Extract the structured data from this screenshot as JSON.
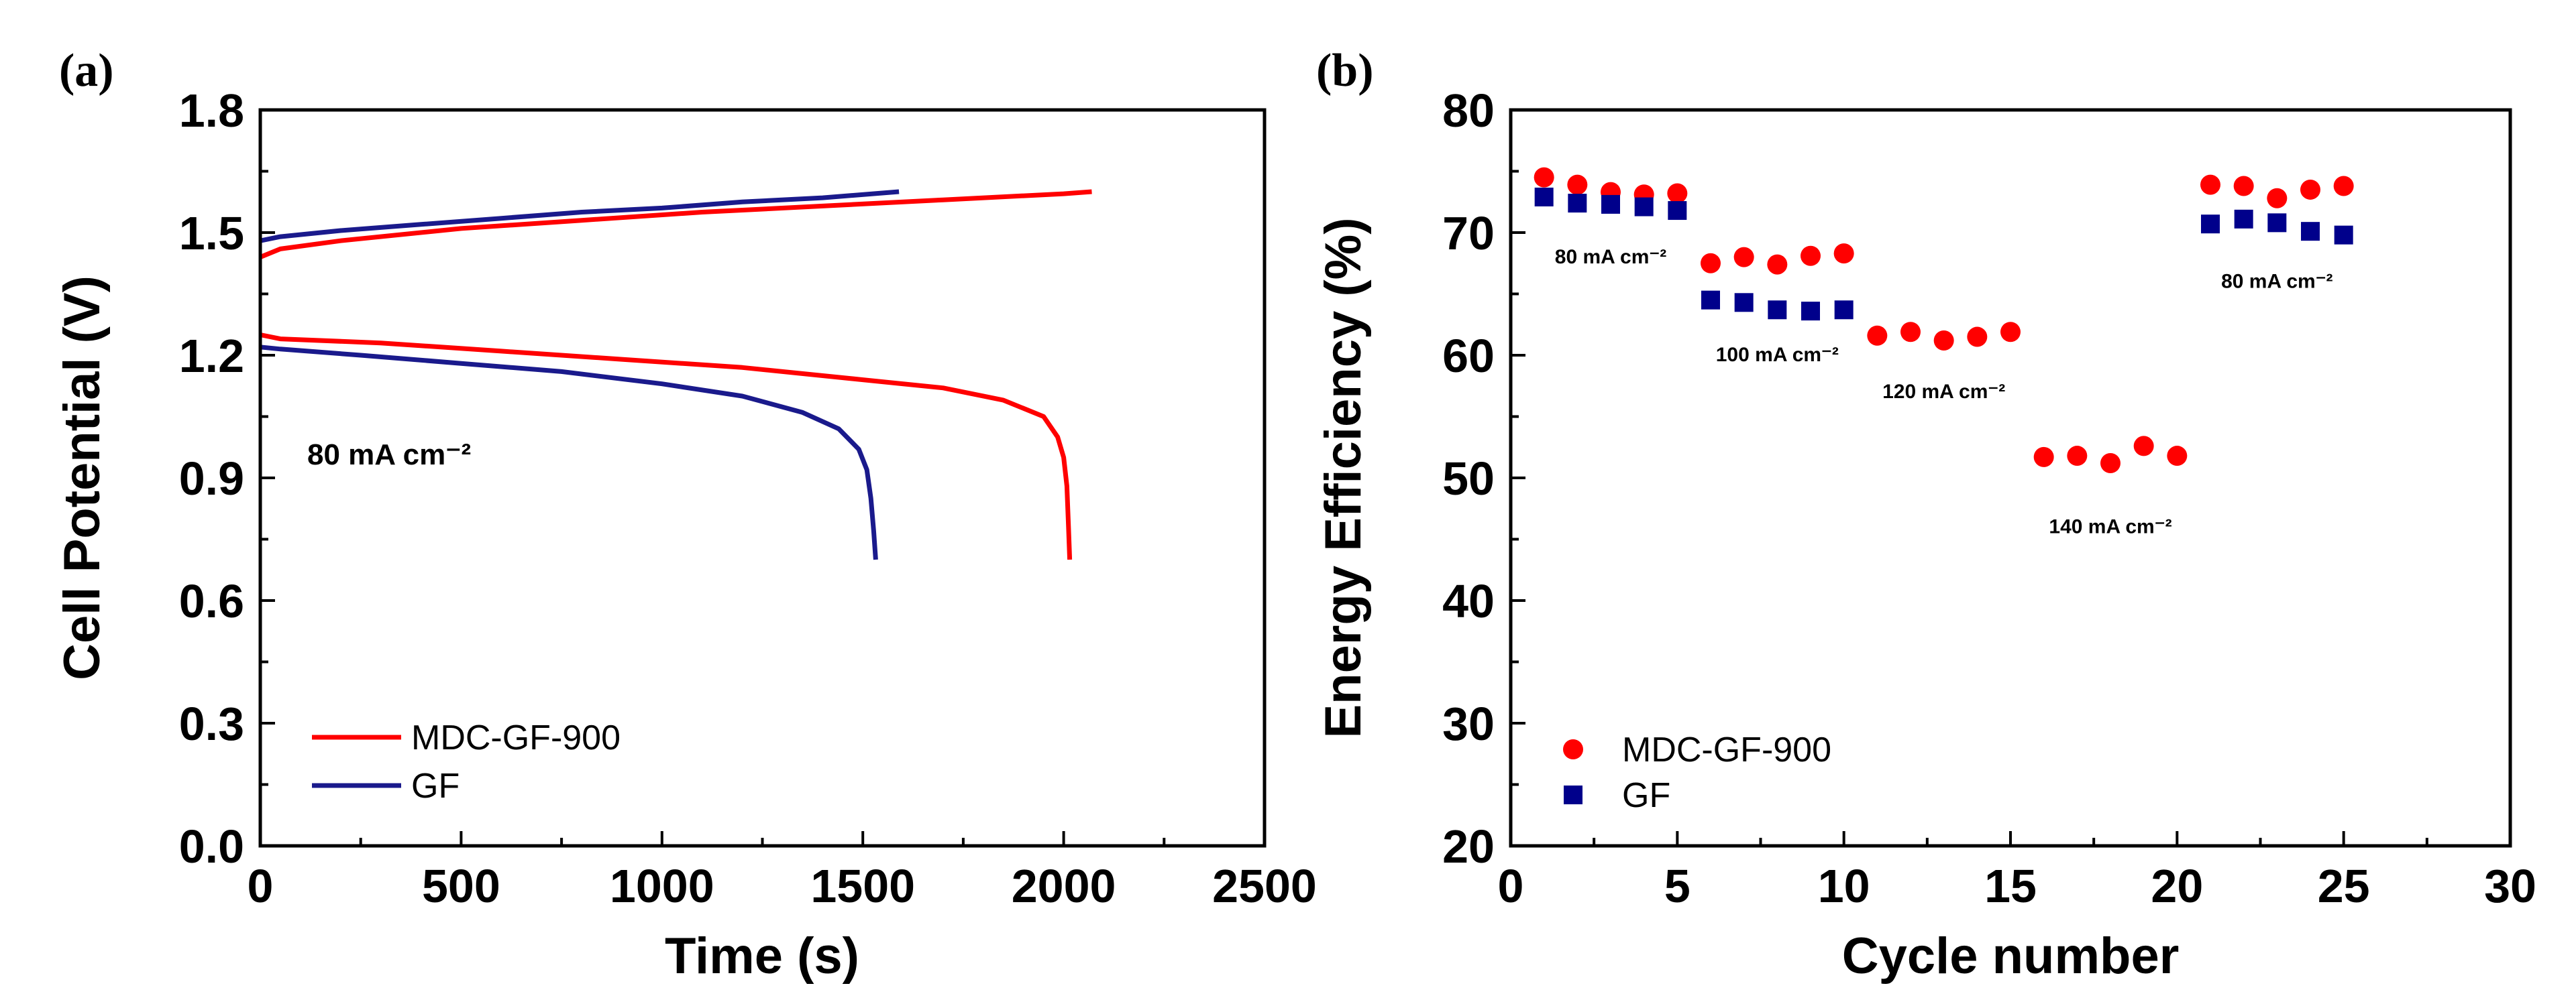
{
  "figure": {
    "panel_a_label": "(a)",
    "panel_b_label": "(b)"
  },
  "colors": {
    "mdc": "#ff0000",
    "gf_line": "#1a1a8c",
    "gf_marker": "#00008b"
  },
  "chart_data": [
    {
      "type": "line",
      "panel": "(a)",
      "title": "",
      "xlabel": "Time (s)",
      "ylabel": "Cell Potential (V)",
      "xlim": [
        0,
        2500
      ],
      "ylim": [
        0.0,
        1.8
      ],
      "xticks": [
        0,
        500,
        1000,
        1500,
        2000,
        2500
      ],
      "yticks": [
        0.0,
        0.3,
        0.6,
        0.9,
        1.2,
        1.5,
        1.8
      ],
      "xtick_labels": [
        "0",
        "500",
        "1000",
        "1500",
        "2000",
        "2500"
      ],
      "ytick_labels": [
        "0.0",
        "0.3",
        "0.6",
        "0.9",
        "1.2",
        "1.5",
        "1.8"
      ],
      "annotation": "80 mA cm⁻²",
      "legend_position": "bottom-left",
      "series": [
        {
          "name": "MDC-GF-900",
          "color": "#ff0000",
          "charge": {
            "x": [
              0,
              50,
              200,
              500,
              800,
              1100,
              1400,
              1700,
              2000,
              2070
            ],
            "y": [
              1.44,
              1.46,
              1.48,
              1.51,
              1.53,
              1.55,
              1.565,
              1.58,
              1.595,
              1.6
            ]
          },
          "discharge": {
            "x": [
              0,
              50,
              300,
              600,
              900,
              1200,
              1500,
              1700,
              1850,
              1950,
              1985,
              2000,
              2008,
              2012,
              2015
            ],
            "y": [
              1.25,
              1.24,
              1.23,
              1.21,
              1.19,
              1.17,
              1.14,
              1.12,
              1.09,
              1.05,
              1.0,
              0.95,
              0.88,
              0.78,
              0.7
            ]
          }
        },
        {
          "name": "GF",
          "color": "#1a1a8c",
          "charge": {
            "x": [
              0,
              50,
              200,
              400,
              600,
              800,
              1000,
              1200,
              1400,
              1590
            ],
            "y": [
              1.48,
              1.49,
              1.505,
              1.52,
              1.535,
              1.55,
              1.56,
              1.575,
              1.585,
              1.6
            ]
          },
          "discharge": {
            "x": [
              0,
              50,
              250,
              500,
              750,
              1000,
              1200,
              1350,
              1440,
              1490,
              1510,
              1520,
              1527,
              1532
            ],
            "y": [
              1.22,
              1.215,
              1.2,
              1.18,
              1.16,
              1.13,
              1.1,
              1.06,
              1.02,
              0.97,
              0.92,
              0.85,
              0.77,
              0.7
            ]
          }
        }
      ]
    },
    {
      "type": "scatter",
      "panel": "(b)",
      "title": "",
      "xlabel": "Cycle number",
      "ylabel": "Energy Efficiency (%)",
      "xlim": [
        0,
        30
      ],
      "ylim": [
        20,
        80
      ],
      "xticks": [
        0,
        5,
        10,
        15,
        20,
        25,
        30
      ],
      "yticks": [
        20,
        30,
        40,
        50,
        60,
        70,
        80
      ],
      "xtick_labels": [
        "0",
        "5",
        "10",
        "15",
        "20",
        "25",
        "30"
      ],
      "ytick_labels": [
        "20",
        "30",
        "40",
        "50",
        "60",
        "70",
        "80"
      ],
      "legend_position": "bottom-left",
      "annotations": [
        {
          "text": "80 mA cm⁻²",
          "x": 3,
          "y": 67.5
        },
        {
          "text": "100 mA cm⁻²",
          "x": 8,
          "y": 59.5
        },
        {
          "text": "120 mA cm⁻²",
          "x": 13,
          "y": 56.5
        },
        {
          "text": "140 mA cm⁻²",
          "x": 18,
          "y": 45.5
        },
        {
          "text": "80 mA cm⁻²",
          "x": 23,
          "y": 65.5
        }
      ],
      "series": [
        {
          "name": "MDC-GF-900",
          "marker": "circle",
          "color": "#ff0000",
          "x": [
            1,
            2,
            3,
            4,
            5,
            6,
            7,
            8,
            9,
            10,
            11,
            12,
            13,
            14,
            15,
            16,
            17,
            18,
            19,
            20,
            21,
            22,
            23,
            24,
            25
          ],
          "y": [
            74.5,
            73.9,
            73.3,
            73.1,
            73.2,
            67.5,
            68.0,
            67.4,
            68.1,
            68.3,
            61.6,
            61.9,
            61.2,
            61.5,
            61.9,
            51.7,
            51.8,
            51.2,
            52.6,
            51.8,
            73.9,
            73.8,
            72.8,
            73.5,
            73.8
          ]
        },
        {
          "name": "GF",
          "marker": "square",
          "color": "#00008b",
          "x": [
            1,
            2,
            3,
            4,
            5,
            6,
            7,
            8,
            9,
            10,
            21,
            22,
            23,
            24,
            25
          ],
          "y": [
            72.9,
            72.4,
            72.3,
            72.1,
            71.8,
            64.5,
            64.3,
            63.7,
            63.6,
            63.7,
            70.7,
            71.1,
            70.8,
            70.1,
            69.8
          ]
        }
      ]
    }
  ]
}
